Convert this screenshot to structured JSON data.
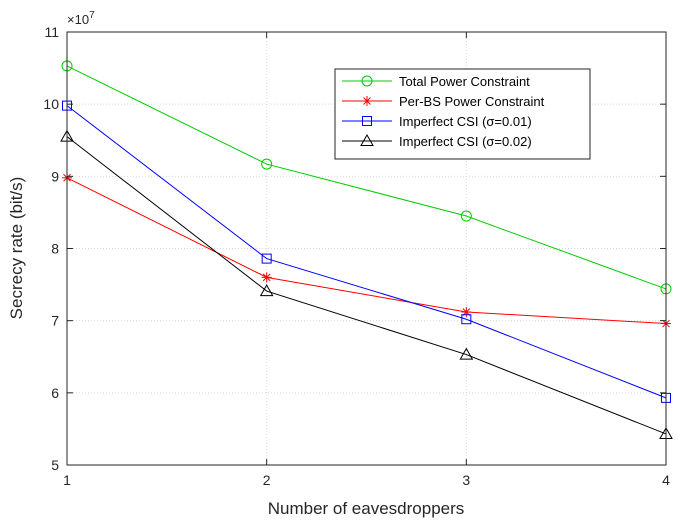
{
  "chart_data": {
    "type": "line",
    "xlabel": "Number of eavesdroppers",
    "ylabel": "Secrecy rate (bit/s)",
    "y_multiplier": "10",
    "y_multiplier_exp": "7",
    "x": [
      1,
      2,
      3,
      4
    ],
    "xlim": [
      1,
      4
    ],
    "ylim": [
      5,
      11
    ],
    "x_ticks": [
      1,
      2,
      3,
      4
    ],
    "y_ticks": [
      5,
      6,
      7,
      8,
      9,
      10,
      11
    ],
    "grid": true,
    "legend_position": "top-right",
    "series": [
      {
        "name": "Total Power Constraint",
        "values": [
          10.53,
          9.17,
          8.45,
          7.44
        ],
        "color": "#00cc00",
        "marker": "circle"
      },
      {
        "name": "Per-BS Power Constraint",
        "values": [
          8.98,
          7.6,
          7.12,
          6.96
        ],
        "color": "#ff0000",
        "marker": "asterisk"
      },
      {
        "name": "Imperfect CSI (σ=0.01)",
        "values": [
          9.98,
          7.86,
          7.02,
          5.93
        ],
        "color": "#0000ff",
        "marker": "square"
      },
      {
        "name": "Imperfect CSI (σ=0.02)",
        "values": [
          9.55,
          7.41,
          6.53,
          5.43
        ],
        "color": "#000000",
        "marker": "triangle"
      }
    ]
  }
}
